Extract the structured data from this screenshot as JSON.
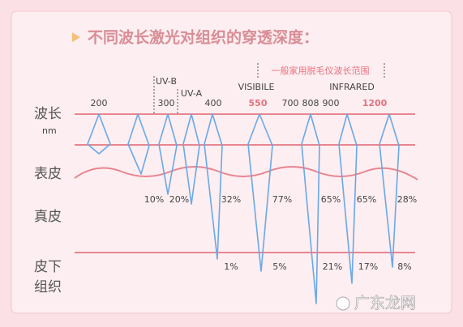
{
  "title": "不同波长激光对组织的穿透深度：",
  "layers": {
    "wavelength": "波长",
    "unit": "nm",
    "epidermis": "表皮",
    "dermis": "真皮",
    "subcutaneous_1": "皮下",
    "subcutaneous_2": "组织"
  },
  "bands": {
    "uvb": "UV-B",
    "uva": "UV-A",
    "visible": "VISIBILE",
    "infrared": "INFRARED",
    "home_range": "一般家用脱毛仪波长范围"
  },
  "wavelengths": [
    "200",
    "300",
    "400",
    "550",
    "700",
    "808",
    "900",
    "1200"
  ],
  "dermis_penetration": [
    "10%",
    "20%",
    "32%",
    "77%",
    "65%",
    "65%",
    "28%"
  ],
  "subcutaneous_penetration": [
    "1%",
    "5%",
    "21%",
    "17%",
    "8%"
  ],
  "watermark": "广东龙网"
}
